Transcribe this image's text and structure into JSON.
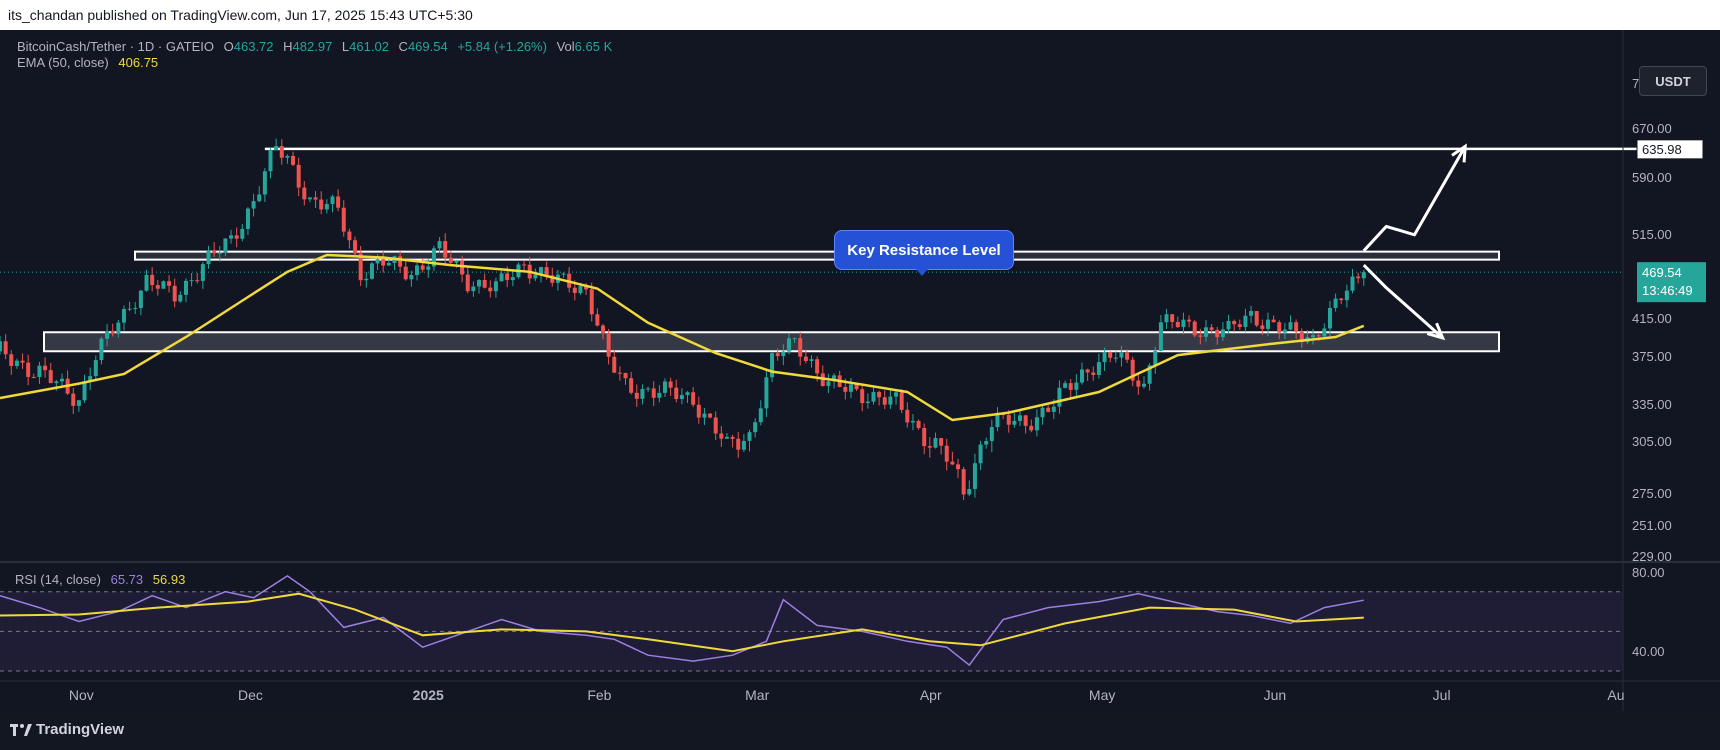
{
  "header": {
    "publisher_line": "its_chandan published on TradingView.com, Jun 17, 2025 15:43 UTC+5:30"
  },
  "legend": {
    "symbol": "BitcoinCash/Tether · 1D · GATEIO",
    "o_label": "O",
    "o_value": "463.72",
    "h_label": "H",
    "h_value": "482.97",
    "l_label": "L",
    "l_value": "461.02",
    "c_label": "C",
    "c_value": "469.54",
    "change": "+5.84 (+1.26%)",
    "vol_label": "Vol",
    "vol_value": "6.65 K",
    "ema_label": "EMA (50, close)",
    "ema_value": "406.75"
  },
  "rsi_legend": {
    "label": "RSI (14, close)",
    "value1": "65.73",
    "value2": "56.93"
  },
  "currency_button": "USDT",
  "callout": "Key Resistance Level",
  "footer": {
    "brand": "TradingView"
  },
  "colors": {
    "background": "#121522",
    "up": "#26a69a",
    "down": "#ef5350",
    "ema": "#f0d93b",
    "rsi": "#9c7fe0",
    "rsi_ma": "#f0d93b",
    "callout": "#2451d6"
  },
  "chart_data": [
    {
      "type": "candlestick",
      "title": "BitcoinCash/Tether · 1D · GATEIO",
      "y_axis_ticks": [
        229,
        251,
        275,
        305,
        335,
        375,
        415,
        515,
        590,
        670,
        750
      ],
      "y_tick_labels": [
        "229.00",
        "251.00",
        "275.00",
        "305.00",
        "335.00",
        "375.00",
        "415.00",
        "515.00",
        "590.00",
        "670.00",
        "750.00"
      ],
      "ylim": [
        225,
        780
      ],
      "x_ticks": [
        "Nov",
        "Dec",
        "2025",
        "Feb",
        "Mar",
        "Apr",
        "May",
        "Jun",
        "Jul",
        "Au"
      ],
      "x_range": [
        "2024-10-18",
        "2025-08-02"
      ],
      "last_price": {
        "value": 469.54,
        "label": "469.54",
        "countdown": "13:46:49"
      },
      "target_label": {
        "value": 635.98,
        "label": "635.98"
      },
      "close_series": {
        "dates": [
          "2024-10-18",
          "2024-10-25",
          "2024-11-01",
          "2024-11-04",
          "2024-11-09",
          "2024-11-13",
          "2024-11-18",
          "2024-11-23",
          "2024-11-28",
          "2024-12-02",
          "2024-12-06",
          "2024-12-08",
          "2024-12-12",
          "2024-12-17",
          "2024-12-21",
          "2024-12-25",
          "2024-12-30",
          "2025-01-04",
          "2025-01-09",
          "2025-01-14",
          "2025-01-19",
          "2025-01-24",
          "2025-01-30",
          "2025-02-03",
          "2025-02-06",
          "2025-02-12",
          "2025-02-18",
          "2025-02-24",
          "2025-02-28",
          "2025-03-04",
          "2025-03-08",
          "2025-03-14",
          "2025-03-20",
          "2025-03-26",
          "2025-03-31",
          "2025-04-04",
          "2025-04-07",
          "2025-04-12",
          "2025-04-18",
          "2025-04-23",
          "2025-04-30",
          "2025-05-04",
          "2025-05-09",
          "2025-05-12",
          "2025-05-18",
          "2025-05-24",
          "2025-05-28",
          "2025-06-03",
          "2025-06-08",
          "2025-06-12",
          "2025-06-17"
        ],
        "close": [
          380,
          360,
          340,
          375,
          420,
          460,
          440,
          480,
          505,
          560,
          635,
          618,
          560,
          545,
          470,
          480,
          470,
          495,
          460,
          450,
          480,
          460,
          450,
          370,
          350,
          345,
          340,
          300,
          310,
          370,
          390,
          350,
          345,
          335,
          310,
          295,
          275,
          320,
          320,
          335,
          370,
          375,
          350,
          410,
          405,
          400,
          420,
          400,
          395,
          430,
          469.54
        ]
      },
      "ema_series": {
        "name": "EMA (50, close)",
        "dates": [
          "2024-10-18",
          "2024-11-01",
          "2024-11-09",
          "2024-11-20",
          "2024-12-01",
          "2024-12-08",
          "2024-12-15",
          "2024-12-25",
          "2025-01-06",
          "2025-01-20",
          "2025-02-01",
          "2025-02-10",
          "2025-02-22",
          "2025-03-04",
          "2025-03-15",
          "2025-03-28",
          "2025-04-05",
          "2025-04-15",
          "2025-05-01",
          "2025-05-15",
          "2025-06-01",
          "2025-06-12",
          "2025-06-17"
        ],
        "values": [
          340,
          352,
          360,
          395,
          440,
          470,
          490,
          487,
          478,
          470,
          450,
          410,
          378,
          362,
          355,
          345,
          322,
          328,
          345,
          376,
          388,
          395,
          406.75
        ]
      },
      "zones": [
        {
          "low": 488,
          "high": 494
        },
        {
          "low": 380,
          "high": 400
        }
      ],
      "lines": [
        {
          "value": 635.98,
          "from": "2024-12-04",
          "to": "2025-08-02"
        }
      ],
      "annotations": [
        {
          "text": "Key Resistance Level",
          "date": "2025-03-27"
        }
      ],
      "projections": [
        {
          "points": [
            [
              "2025-06-17",
              495
            ],
            [
              "2025-06-21",
              525
            ],
            [
              "2025-06-26",
              514
            ],
            [
              "2025-07-05",
              640
            ]
          ]
        },
        {
          "points": [
            [
              "2025-06-17",
              478
            ],
            [
              "2025-06-21",
              451
            ],
            [
              "2025-07-01",
              394
            ]
          ]
        }
      ]
    },
    {
      "type": "line",
      "title": "RSI (14, close)",
      "y_tick_labels": [
        "80.00",
        "40.00"
      ],
      "y_ticks": [
        80,
        40
      ],
      "ylim": [
        28,
        86
      ],
      "bands": [
        70,
        50,
        30
      ],
      "series": [
        {
          "name": "RSI",
          "dates": [
            "2024-10-18",
            "2024-10-25",
            "2024-11-01",
            "2024-11-08",
            "2024-11-14",
            "2024-11-20",
            "2024-11-27",
            "2024-12-02",
            "2024-12-08",
            "2024-12-12",
            "2024-12-18",
            "2024-12-25",
            "2025-01-01",
            "2025-01-08",
            "2025-01-15",
            "2025-01-22",
            "2025-01-30",
            "2025-02-04",
            "2025-02-10",
            "2025-02-18",
            "2025-02-25",
            "2025-03-03",
            "2025-03-06",
            "2025-03-12",
            "2025-03-20",
            "2025-03-28",
            "2025-04-04",
            "2025-04-08",
            "2025-04-14",
            "2025-04-22",
            "2025-05-01",
            "2025-05-08",
            "2025-05-14",
            "2025-05-22",
            "2025-05-28",
            "2025-06-04",
            "2025-06-10",
            "2025-06-17"
          ],
          "values": [
            68,
            62,
            55,
            60,
            68,
            62,
            70,
            67,
            78,
            70,
            52,
            57,
            42,
            49,
            56,
            50,
            48,
            46,
            38,
            35,
            38,
            45,
            66,
            53,
            50,
            45,
            42,
            33,
            56,
            62,
            65,
            69,
            65,
            60,
            58,
            54,
            62,
            65.73
          ]
        },
        {
          "name": "RSI MA",
          "dates": [
            "2024-10-18",
            "2024-11-01",
            "2024-11-15",
            "2024-12-01",
            "2024-12-10",
            "2024-12-20",
            "2025-01-01",
            "2025-01-15",
            "2025-01-30",
            "2025-02-10",
            "2025-02-25",
            "2025-03-06",
            "2025-03-20",
            "2025-04-01",
            "2025-04-10",
            "2025-04-25",
            "2025-05-10",
            "2025-05-25",
            "2025-06-05",
            "2025-06-17"
          ],
          "values": [
            58,
            58.5,
            62,
            65,
            69,
            61,
            48,
            51,
            50,
            46,
            40,
            45,
            51,
            45,
            43,
            54,
            62,
            61,
            55,
            56.93
          ]
        }
      ]
    }
  ]
}
